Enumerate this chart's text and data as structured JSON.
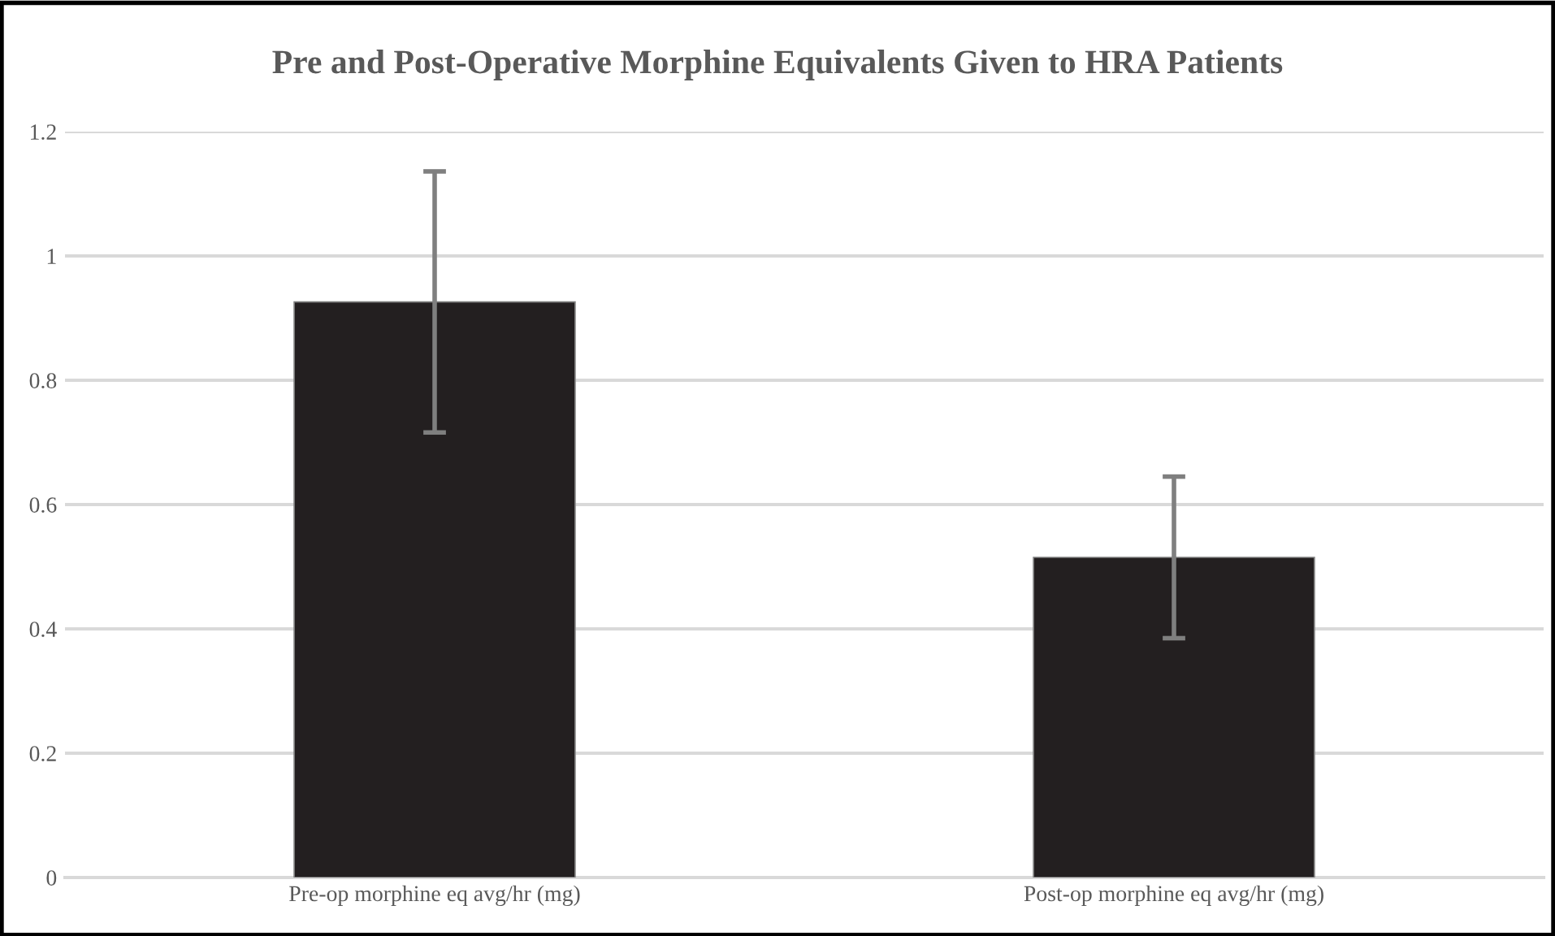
{
  "chart_data": {
    "type": "bar",
    "title": "Pre and Post-Operative Morphine Equivalents Given to HRA Patients",
    "categories": [
      "Pre-op morphine eq avg/hr (mg)",
      "Post-op morphine eq avg/hr (mg)"
    ],
    "values": [
      0.926,
      0.515
    ],
    "errors": [
      0.21,
      0.13
    ],
    "color": "#231f20",
    "ylim": [
      0,
      1.2
    ],
    "yticks": [
      0,
      0.2,
      0.4,
      0.6,
      0.8,
      1,
      1.2
    ],
    "grid": "y",
    "legend": false
  }
}
